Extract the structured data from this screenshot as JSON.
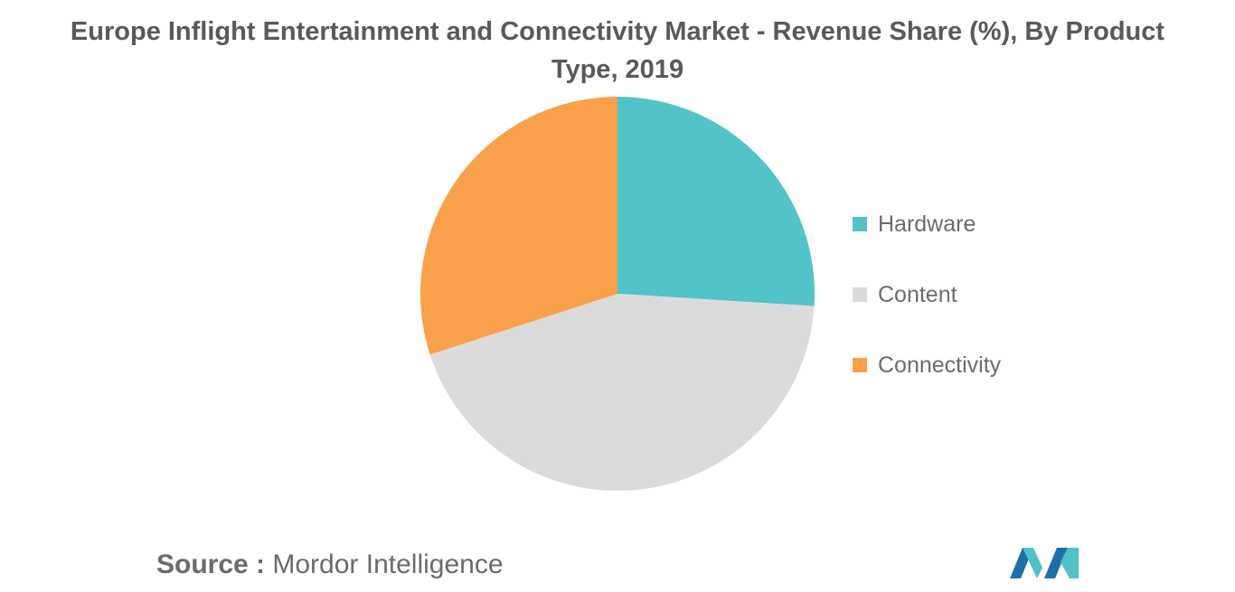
{
  "chart_data": {
    "type": "pie",
    "title_line1": "Europe Inflight Entertainment and Connectivity Market - Revenue Share (%), By Product",
    "title_line2": "Type, 2019",
    "slices": [
      {
        "label": "Hardware",
        "value": 26,
        "color": "#52C4C9"
      },
      {
        "label": "Content",
        "value": 44,
        "color": "#DBDBDB"
      },
      {
        "label": "Connectivity",
        "value": 30,
        "color": "#F9A04A"
      }
    ],
    "legend_position": "right"
  },
  "source": {
    "label": "Source :",
    "name": "Mordor Intelligence"
  },
  "logo": {
    "icon": "mordor-intelligence-logo",
    "colors": [
      "#1F6FA7",
      "#4FC3C8"
    ]
  }
}
